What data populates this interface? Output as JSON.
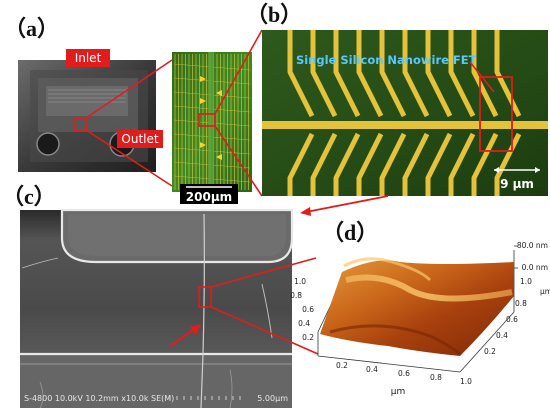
{
  "panels": {
    "a": {
      "letter": "（a）",
      "inlet_label": "Inlet",
      "outlet_label": "Outlet",
      "scale_bar": "200μm"
    },
    "b": {
      "letter": "（b）",
      "device_label": "Single Silicon Nanowire FET",
      "scale_bar": "9 μm"
    },
    "c": {
      "letter": "（c）",
      "sem_info": "S-4800 10.0kV 10.2mm x10.0k SE(M)",
      "scale_bar": "5.00μm"
    },
    "d": {
      "letter": "（d）",
      "z_ticks": [
        "80.0 nm",
        "0.0 nm"
      ],
      "y_ticks": [
        "1.0",
        "0.8",
        "0.6",
        "0.4",
        "0.2"
      ],
      "y_unit": "μm",
      "x_ticks": [
        "0.2",
        "0.4",
        "0.6",
        "0.8",
        "1.0"
      ],
      "x_unit": "μm",
      "left_ticks": [
        "1.0",
        "0.8",
        "0.6",
        "0.4",
        "0.2"
      ]
    }
  },
  "colors": {
    "callout_red": "#e11c1c",
    "chip_green": "#3f8a22",
    "electrode_gold": "#e4c23a",
    "sem_gray": "#6e6e6e",
    "afm_orange": "#d4751c"
  }
}
